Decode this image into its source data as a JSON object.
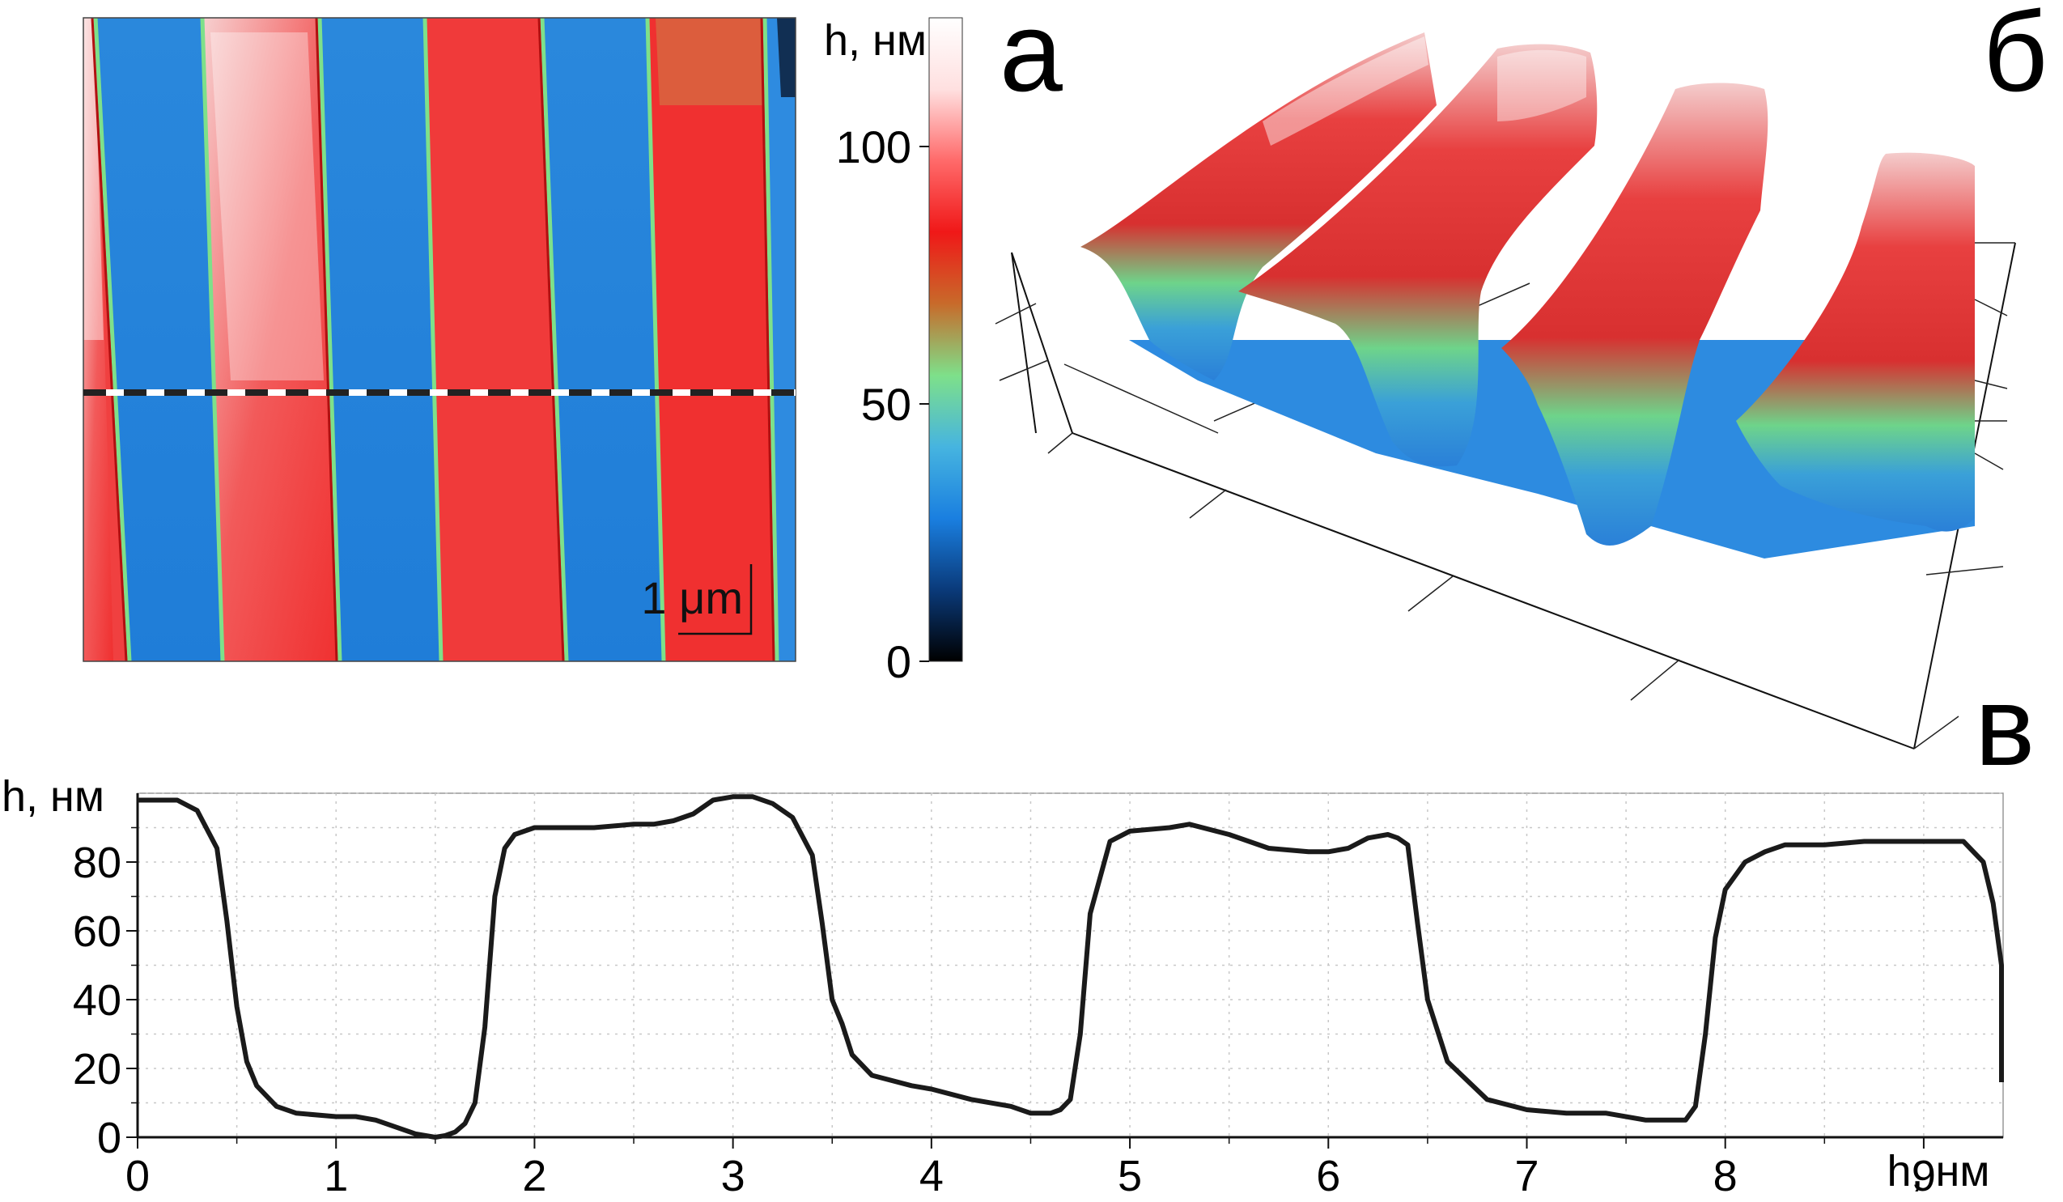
{
  "panels": {
    "a": {
      "letter": "а"
    },
    "b": {
      "letter": "б"
    },
    "c": {
      "letter": "в"
    }
  },
  "colorbar": {
    "label": "h, нм",
    "ticks": [
      0,
      50,
      100
    ],
    "range": [
      0,
      125
    ],
    "stops": [
      "#000000",
      "#0a3a7a",
      "#1a7fe0",
      "#46b4e0",
      "#7ee08a",
      "#c86a2a",
      "#f01818",
      "#ff6a6a",
      "#ffe0e0",
      "#ffffff"
    ]
  },
  "map": {
    "scalebar_label": "1 μm",
    "colors": {
      "high": "#f03c3c",
      "high_light": "#f7c8c8",
      "low": "#2d8be0",
      "edge": "#7ee08a",
      "edge_dark": "#b01010"
    }
  },
  "chart_data": {
    "type": "line",
    "ylabel": "h, нм",
    "xlabel": "h, нм",
    "xlim": [
      0,
      9.4
    ],
    "ylim": [
      0,
      100
    ],
    "x_ticks": [
      0,
      1,
      2,
      3,
      4,
      5,
      6,
      7,
      8,
      9
    ],
    "y_ticks": [
      0,
      20,
      40,
      60,
      80
    ],
    "grid": true,
    "series": [
      {
        "color": "#1a1a1a",
        "x": [
          0,
          0.1,
          0.2,
          0.3,
          0.4,
          0.45,
          0.5,
          0.55,
          0.6,
          0.7,
          0.8,
          1.0,
          1.1,
          1.2,
          1.3,
          1.4,
          1.5,
          1.55,
          1.6,
          1.65,
          1.7,
          1.75,
          1.8,
          1.85,
          1.9,
          2.0,
          2.1,
          2.3,
          2.5,
          2.6,
          2.7,
          2.8,
          2.9,
          3.0,
          3.1,
          3.2,
          3.3,
          3.4,
          3.45,
          3.5,
          3.55,
          3.6,
          3.7,
          3.9,
          4.0,
          4.2,
          4.4,
          4.5,
          4.6,
          4.65,
          4.7,
          4.75,
          4.8,
          4.9,
          5.0,
          5.2,
          5.3,
          5.5,
          5.7,
          5.9,
          6.0,
          6.1,
          6.2,
          6.3,
          6.35,
          6.4,
          6.45,
          6.5,
          6.6,
          6.8,
          7.0,
          7.2,
          7.4,
          7.6,
          7.7,
          7.8,
          7.85,
          7.9,
          7.95,
          8.0,
          8.1,
          8.2,
          8.3,
          8.5,
          8.7,
          8.9,
          9.0,
          9.15,
          9.2,
          9.3,
          9.35,
          9.4,
          9.45,
          9.5
        ],
        "y": [
          98,
          98,
          98,
          95,
          84,
          63,
          38,
          22,
          15,
          9,
          7,
          6,
          6,
          5,
          3,
          1,
          0,
          0.5,
          1.5,
          4,
          10,
          32,
          70,
          84,
          88,
          90,
          90,
          90,
          91,
          91,
          92,
          94,
          98,
          99,
          99,
          97,
          93,
          82,
          62,
          40,
          33,
          24,
          18,
          15,
          14,
          11,
          9,
          7,
          7,
          8,
          11,
          30,
          65,
          86,
          89,
          90,
          91,
          88,
          84,
          83,
          83,
          84,
          87,
          88,
          87,
          85,
          62,
          40,
          22,
          11,
          8,
          7,
          7,
          5,
          5,
          5,
          9,
          30,
          58,
          72,
          80,
          83,
          85,
          85,
          86,
          86,
          86,
          86,
          86,
          80,
          68,
          50,
          28,
          16
        ]
      }
    ]
  }
}
